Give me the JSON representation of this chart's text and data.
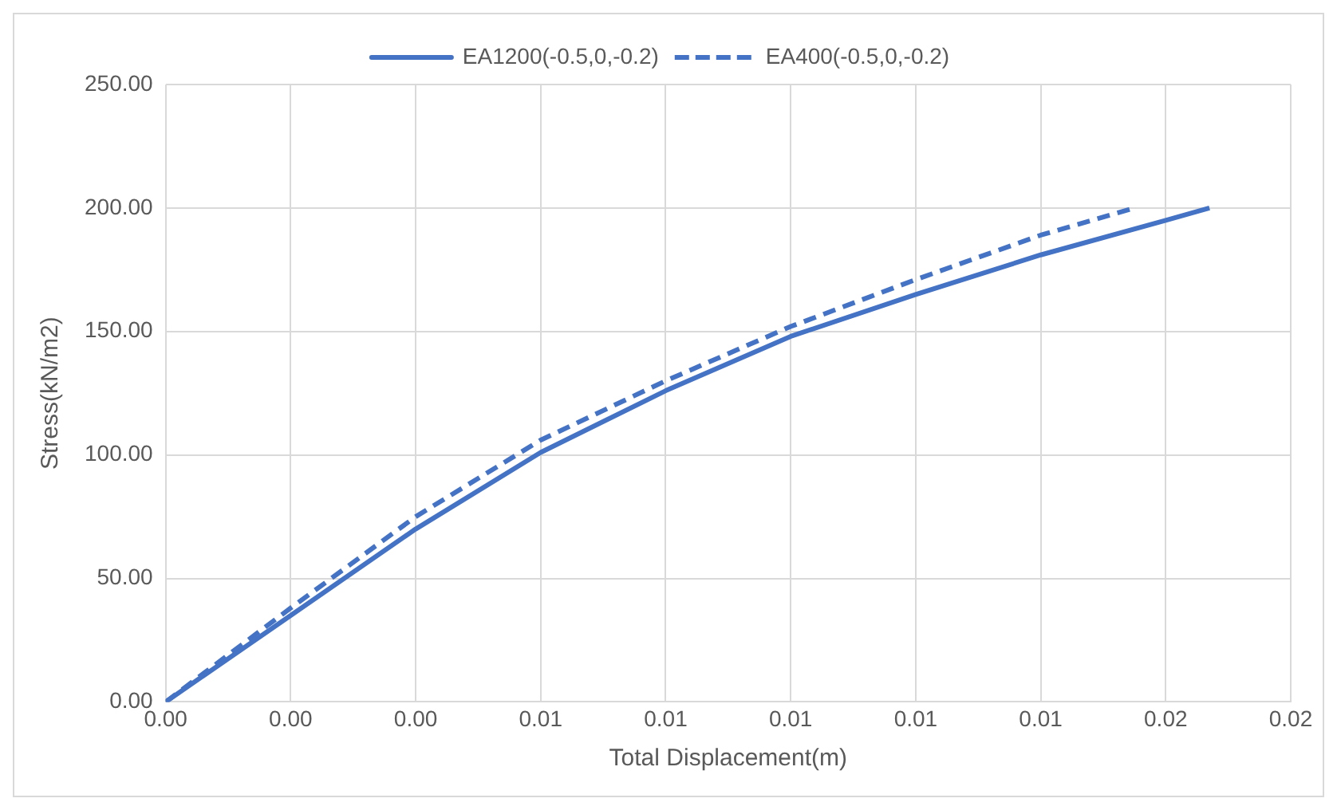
{
  "chart_data": {
    "type": "line",
    "xlabel": "Total Displacement(m)",
    "ylabel": "Stress(kN/m2)",
    "xlim": [
      0,
      0.018
    ],
    "xticks": [
      {
        "value": 0,
        "label": "0.00"
      },
      {
        "value": 0.002,
        "label": "0.00"
      },
      {
        "value": 0.004,
        "label": "0.00"
      },
      {
        "value": 0.006,
        "label": "0.01"
      },
      {
        "value": 0.008,
        "label": "0.01"
      },
      {
        "value": 0.01,
        "label": "0.01"
      },
      {
        "value": 0.012,
        "label": "0.01"
      },
      {
        "value": 0.014,
        "label": "0.01"
      },
      {
        "value": 0.016,
        "label": "0.02"
      },
      {
        "value": 0.018,
        "label": "0.02"
      }
    ],
    "ylim": [
      0,
      250
    ],
    "yticks": [
      {
        "value": 0,
        "label": "0.00"
      },
      {
        "value": 50,
        "label": "50.00"
      },
      {
        "value": 100,
        "label": "100.00"
      },
      {
        "value": 150,
        "label": "150.00"
      },
      {
        "value": 200,
        "label": "200.00"
      },
      {
        "value": 250,
        "label": "250.00"
      }
    ],
    "grid": true,
    "legend": "top",
    "marker": "none",
    "series": [
      {
        "name": "EA1200(-0.5,0,-0.2)",
        "color": "#4472c4",
        "line_style": "solid",
        "x": [
          0,
          0.002,
          0.004,
          0.006,
          0.008,
          0.01,
          0.012,
          0.014,
          0.016,
          0.0167
        ],
        "values": [
          0,
          35,
          70,
          101,
          126,
          148,
          165,
          181,
          195,
          200
        ]
      },
      {
        "name": "EA400(-0.5,0,-0.2)",
        "color": "#4472c4",
        "line_style": "dashed",
        "x": [
          0,
          0.002,
          0.004,
          0.006,
          0.008,
          0.01,
          0.012,
          0.014,
          0.0155
        ],
        "values": [
          0,
          38,
          75,
          106,
          130,
          152,
          171,
          189,
          200
        ]
      }
    ]
  }
}
